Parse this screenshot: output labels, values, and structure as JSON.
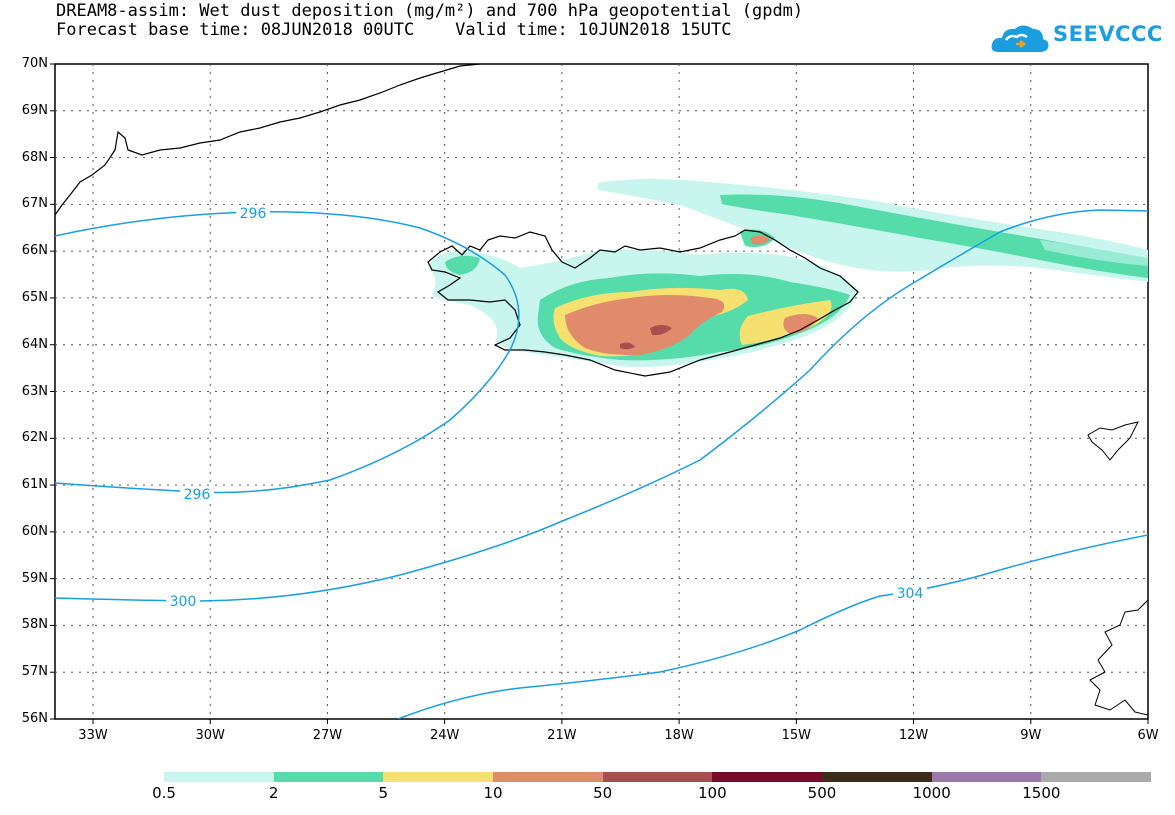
{
  "header": {
    "title_line1": "DREAM8-assim: Wet dust deposition (mg/m²) and 700 hPa geopotential (gpdm)",
    "title_line2": "Forecast base time: 08JUN2018 00UTC    Valid time: 10JUN2018 15UTC"
  },
  "logo": {
    "text": "SEEVCCC",
    "color": "#1a9ee0"
  },
  "map": {
    "lat_labels": [
      "70N",
      "69N",
      "68N",
      "67N",
      "66N",
      "65N",
      "64N",
      "63N",
      "62N",
      "61N",
      "60N",
      "59N",
      "58N",
      "57N",
      "56N"
    ],
    "lon_labels": [
      "33W",
      "30W",
      "27W",
      "24W",
      "21W",
      "18W",
      "15W",
      "12W",
      "9W",
      "6W"
    ],
    "contour_labels": [
      "296",
      "296",
      "300",
      "304"
    ],
    "contour_color": "#1a9ee0",
    "coastline_color": "#000000"
  },
  "legend": {
    "colors": [
      "#c8f5ee",
      "#55dcaa",
      "#f5e070",
      "#e08c6c",
      "#a85050",
      "#7a0a28",
      "#3c2a1a",
      "#9a78aa",
      "#aaaaaa"
    ],
    "ticks": [
      "0.5",
      "2",
      "5",
      "10",
      "50",
      "100",
      "500",
      "1000",
      "1500"
    ]
  }
}
